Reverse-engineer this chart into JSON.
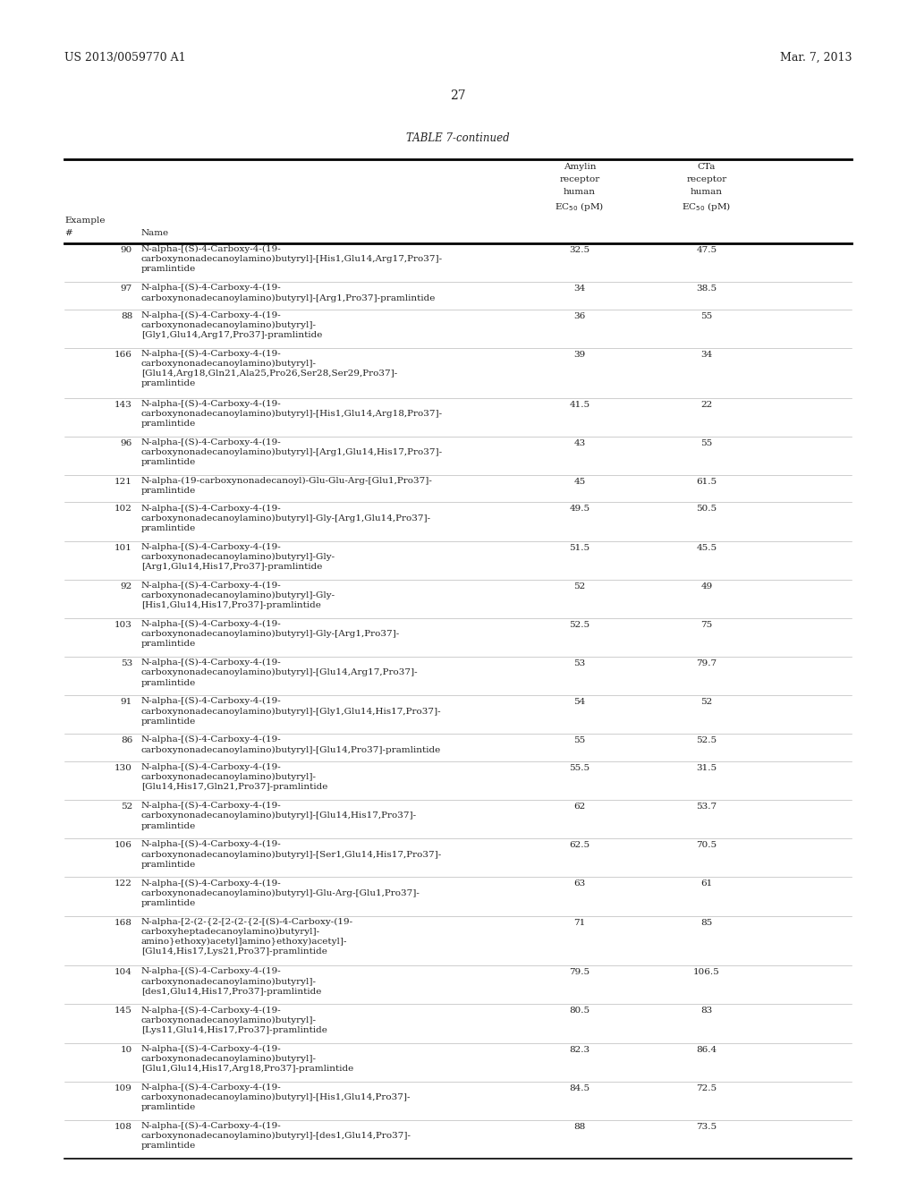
{
  "header_left": "US 2013/0059770 A1",
  "header_right": "Mar. 7, 2013",
  "page_number": "27",
  "table_title": "TABLE 7-continued",
  "rows": [
    {
      "ex": "90",
      "name": "N-alpha-[(S)-4-Carboxy-4-(19-\ncarboxynonadecanoylamino)butyryl]-[His1,Glu14,Arg17,Pro37]-\npramlintide",
      "amylin": "32.5",
      "cts": "47.5"
    },
    {
      "ex": "97",
      "name": "N-alpha-[(S)-4-Carboxy-4-(19-\ncarboxynonadecanoylamino)butyryl]-[Arg1,Pro37]-pramlintide",
      "amylin": "34",
      "cts": "38.5"
    },
    {
      "ex": "88",
      "name": "N-alpha-[(S)-4-Carboxy-4-(19-\ncarboxynonadecanoylamino)butyryl]-\n[Gly1,Glu14,Arg17,Pro37]-pramlintide",
      "amylin": "36",
      "cts": "55"
    },
    {
      "ex": "166",
      "name": "N-alpha-[(S)-4-Carboxy-4-(19-\ncarboxynonadecanoylamino)butyryl]-\n[Glu14,Arg18,Gln21,Ala25,Pro26,Ser28,Ser29,Pro37]-\npramlintide",
      "amylin": "39",
      "cts": "34"
    },
    {
      "ex": "143",
      "name": "N-alpha-[(S)-4-Carboxy-4-(19-\ncarboxynonadecanoylamino)butyryl]-[His1,Glu14,Arg18,Pro37]-\npramlintide",
      "amylin": "41.5",
      "cts": "22"
    },
    {
      "ex": "96",
      "name": "N-alpha-[(S)-4-Carboxy-4-(19-\ncarboxynonadecanoylamino)butyryl]-[Arg1,Glu14,His17,Pro37]-\npramlintide",
      "amylin": "43",
      "cts": "55"
    },
    {
      "ex": "121",
      "name": "N-alpha-(19-carboxynonadecanoyl)-Glu-Glu-Arg-[Glu1,Pro37]-\npramlintide",
      "amylin": "45",
      "cts": "61.5"
    },
    {
      "ex": "102",
      "name": "N-alpha-[(S)-4-Carboxy-4-(19-\ncarboxynonadecanoylamino)butyryl]-Gly-[Arg1,Glu14,Pro37]-\npramlintide",
      "amylin": "49.5",
      "cts": "50.5"
    },
    {
      "ex": "101",
      "name": "N-alpha-[(S)-4-Carboxy-4-(19-\ncarboxynonadecanoylamino)butyryl]-Gly-\n[Arg1,Glu14,His17,Pro37]-pramlintide",
      "amylin": "51.5",
      "cts": "45.5"
    },
    {
      "ex": "92",
      "name": "N-alpha-[(S)-4-Carboxy-4-(19-\ncarboxynonadecanoylamino)butyryl]-Gly-\n[His1,Glu14,His17,Pro37]-pramlintide",
      "amylin": "52",
      "cts": "49"
    },
    {
      "ex": "103",
      "name": "N-alpha-[(S)-4-Carboxy-4-(19-\ncarboxynonadecanoylamino)butyryl]-Gly-[Arg1,Pro37]-\npramlintide",
      "amylin": "52.5",
      "cts": "75"
    },
    {
      "ex": "53",
      "name": "N-alpha-[(S)-4-Carboxy-4-(19-\ncarboxynonadecanoylamino)butyryl]-[Glu14,Arg17,Pro37]-\npramlintide",
      "amylin": "53",
      "cts": "79.7"
    },
    {
      "ex": "91",
      "name": "N-alpha-[(S)-4-Carboxy-4-(19-\ncarboxynonadecanoylamino)butyryl]-[Gly1,Glu14,His17,Pro37]-\npramlintide",
      "amylin": "54",
      "cts": "52"
    },
    {
      "ex": "86",
      "name": "N-alpha-[(S)-4-Carboxy-4-(19-\ncarboxynonadecanoylamino)butyryl]-[Glu14,Pro37]-pramlintide",
      "amylin": "55",
      "cts": "52.5"
    },
    {
      "ex": "130",
      "name": "N-alpha-[(S)-4-Carboxy-4-(19-\ncarboxynonadecanoylamino)butyryl]-\n[Glu14,His17,Gln21,Pro37]-pramlintide",
      "amylin": "55.5",
      "cts": "31.5"
    },
    {
      "ex": "52",
      "name": "N-alpha-[(S)-4-Carboxy-4-(19-\ncarboxynonadecanoylamino)butyryl]-[Glu14,His17,Pro37]-\npramlintide",
      "amylin": "62",
      "cts": "53.7"
    },
    {
      "ex": "106",
      "name": "N-alpha-[(S)-4-Carboxy-4-(19-\ncarboxynonadecanoylamino)butyryl]-[Ser1,Glu14,His17,Pro37]-\npramlintide",
      "amylin": "62.5",
      "cts": "70.5"
    },
    {
      "ex": "122",
      "name": "N-alpha-[(S)-4-Carboxy-4-(19-\ncarboxynonadecanoylamino)butyryl]-Glu-Arg-[Glu1,Pro37]-\npramlintide",
      "amylin": "63",
      "cts": "61"
    },
    {
      "ex": "168",
      "name": "N-alpha-[2-(2-{2-[2-(2-{2-[(S)-4-Carboxy-(19-\ncarboxyheptadecanoylamino)butyryl]-\namino}ethoxy)acetyl]amino}ethoxy)acetyl]-\n[Glu14,His17,Lys21,Pro37]-pramlintide",
      "amylin": "71",
      "cts": "85"
    },
    {
      "ex": "104",
      "name": "N-alpha-[(S)-4-Carboxy-4-(19-\ncarboxynonadecanoylamino)butyryl]-\n[des1,Glu14,His17,Pro37]-pramlintide",
      "amylin": "79.5",
      "cts": "106.5"
    },
    {
      "ex": "145",
      "name": "N-alpha-[(S)-4-Carboxy-4-(19-\ncarboxynonadecanoylamino)butyryl]-\n[Lys11,Glu14,His17,Pro37]-pramlintide",
      "amylin": "80.5",
      "cts": "83"
    },
    {
      "ex": "10",
      "name": "N-alpha-[(S)-4-Carboxy-4-(19-\ncarboxynonadecanoylamino)butyryl]-\n[Glu1,Glu14,His17,Arg18,Pro37]-pramlintide",
      "amylin": "82.3",
      "cts": "86.4"
    },
    {
      "ex": "109",
      "name": "N-alpha-[(S)-4-Carboxy-4-(19-\ncarboxynonadecanoylamino)butyryl]-[His1,Glu14,Pro37]-\npramlintide",
      "amylin": "84.5",
      "cts": "72.5"
    },
    {
      "ex": "108",
      "name": "N-alpha-[(S)-4-Carboxy-4-(19-\ncarboxynonadecanoylamino)butyryl]-[des1,Glu14,Pro37]-\npramlintide",
      "amylin": "88",
      "cts": "73.5"
    }
  ],
  "background_color": "#ffffff",
  "text_color": "#222222"
}
